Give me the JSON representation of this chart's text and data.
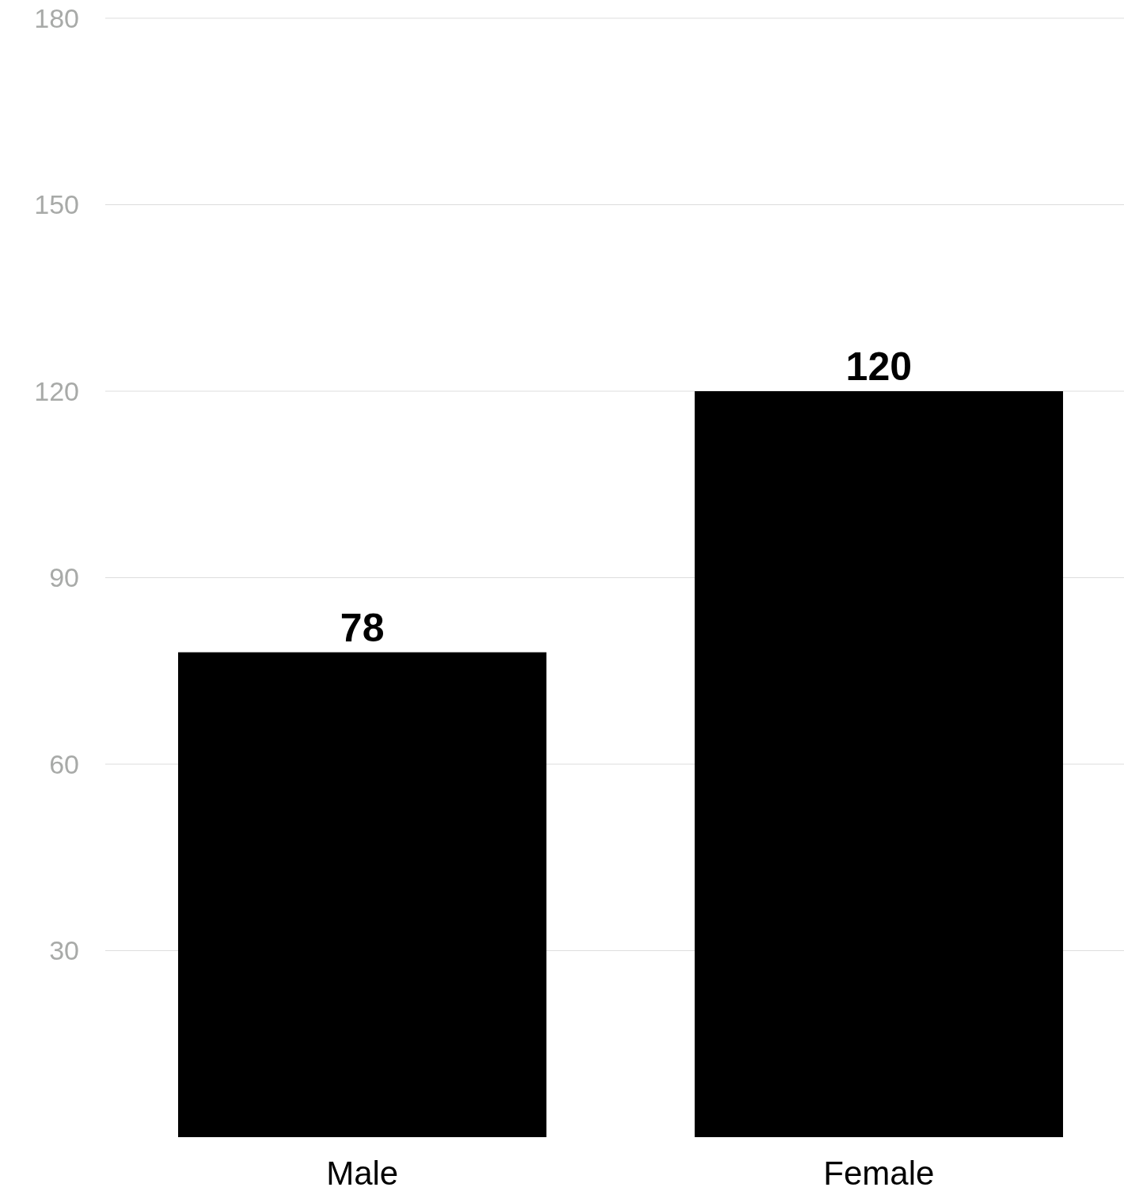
{
  "chart_data": {
    "type": "bar",
    "categories": [
      "Male",
      "Female"
    ],
    "values": [
      78,
      120
    ],
    "color": "#000000",
    "ylim": [
      0,
      180
    ],
    "yticks": [
      30,
      60,
      90,
      120,
      150,
      180
    ],
    "grid": "y",
    "data_labels": true
  }
}
